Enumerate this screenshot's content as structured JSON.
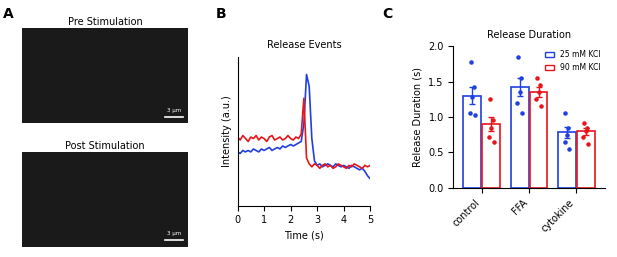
{
  "chart_data": [
    {
      "type": "image",
      "panel_label": "A",
      "images": [
        {
          "title": "Pre Stimulation",
          "scale_bar": "3 μm"
        },
        {
          "title": "Post Stimulation",
          "scale_bar": "3 μm"
        }
      ]
    },
    {
      "type": "line",
      "panel_label": "B",
      "title": "Release Events",
      "x_label": "Time (s)",
      "y_label": "Intensity (a.u.)",
      "x": [
        0.0,
        0.1,
        0.2,
        0.3,
        0.4,
        0.5,
        0.6,
        0.7,
        0.8,
        0.9,
        1.0,
        1.1,
        1.2,
        1.3,
        1.4,
        1.5,
        1.6,
        1.7,
        1.8,
        1.9,
        2.0,
        2.1,
        2.2,
        2.3,
        2.4,
        2.5,
        2.6,
        2.7,
        2.8,
        2.9,
        3.0,
        3.1,
        3.2,
        3.3,
        3.4,
        3.5,
        3.6,
        3.7,
        3.8,
        3.9,
        4.0,
        4.1,
        4.2,
        4.3,
        4.4,
        4.5,
        4.6,
        4.7,
        4.8,
        4.9,
        5.0
      ],
      "series": [
        {
          "color": "#1f3fe0",
          "values": [
            0.36,
            0.35,
            0.37,
            0.36,
            0.37,
            0.36,
            0.38,
            0.37,
            0.36,
            0.38,
            0.37,
            0.38,
            0.39,
            0.37,
            0.38,
            0.39,
            0.38,
            0.4,
            0.39,
            0.4,
            0.41,
            0.4,
            0.41,
            0.42,
            0.43,
            0.55,
            0.88,
            0.8,
            0.45,
            0.3,
            0.27,
            0.28,
            0.26,
            0.27,
            0.28,
            0.27,
            0.26,
            0.28,
            0.27,
            0.26,
            0.27,
            0.26,
            0.25,
            0.27,
            0.26,
            0.25,
            0.24,
            0.25,
            0.23,
            0.2,
            0.18
          ]
        },
        {
          "color": "#e8141b",
          "values": [
            0.46,
            0.44,
            0.47,
            0.45,
            0.43,
            0.46,
            0.45,
            0.47,
            0.44,
            0.46,
            0.45,
            0.43,
            0.46,
            0.47,
            0.44,
            0.45,
            0.46,
            0.44,
            0.45,
            0.47,
            0.45,
            0.44,
            0.46,
            0.45,
            0.48,
            0.72,
            0.32,
            0.28,
            0.26,
            0.28,
            0.27,
            0.25,
            0.27,
            0.28,
            0.26,
            0.27,
            0.25,
            0.26,
            0.28,
            0.27,
            0.26,
            0.25,
            0.27,
            0.26,
            0.28,
            0.27,
            0.26,
            0.25,
            0.27,
            0.26,
            0.27
          ]
        }
      ],
      "xlim": [
        0,
        5
      ],
      "xticks": [
        0,
        1,
        2,
        3,
        4,
        5
      ],
      "ylim": [
        0,
        1
      ],
      "tick_labels": "x"
    },
    {
      "type": "bar",
      "panel_label": "C",
      "title": "Release Duration",
      "y_label": "Release Duration (s)",
      "categories": [
        "control",
        "FFA",
        "cytokine"
      ],
      "series": [
        {
          "name": "25 mM KCl",
          "color": "#1f3fe0",
          "values": [
            1.3,
            1.42,
            0.78
          ],
          "errors": [
            0.12,
            0.13,
            0.08
          ],
          "points": [
            [
              1.78,
              1.42,
              1.28,
              1.05,
              1.03
            ],
            [
              1.85,
              1.55,
              1.35,
              1.2,
              1.05
            ],
            [
              1.05,
              0.85,
              0.75,
              0.65,
              0.55
            ]
          ]
        },
        {
          "name": "90 mM KCl",
          "color": "#e8141b",
          "values": [
            0.9,
            1.35,
            0.8
          ],
          "errors": [
            0.1,
            0.07,
            0.05
          ],
          "points": [
            [
              1.25,
              0.95,
              0.85,
              0.72,
              0.65
            ],
            [
              1.55,
              1.45,
              1.35,
              1.25,
              1.15
            ],
            [
              0.92,
              0.85,
              0.8,
              0.72,
              0.62
            ]
          ]
        }
      ],
      "ylim": [
        0.0,
        2.0
      ],
      "yticks": [
        0.0,
        0.5,
        1.0,
        1.5,
        2.0
      ],
      "legend": "upper right"
    }
  ]
}
